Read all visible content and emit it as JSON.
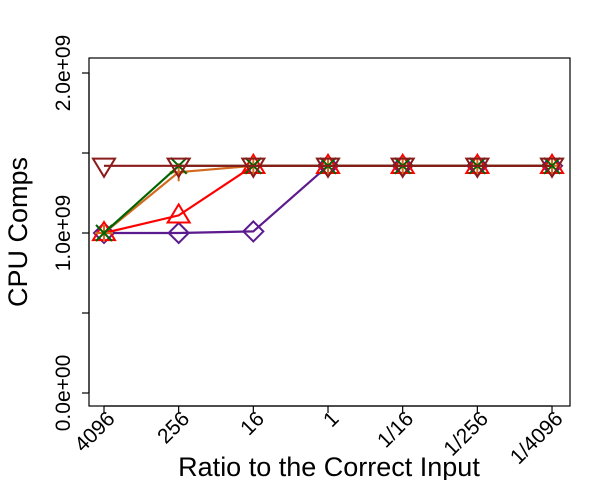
{
  "chart_data": {
    "type": "line",
    "title": "",
    "xlabel": "Ratio to the Correct Input",
    "ylabel": "CPU Comps",
    "categories": [
      "4096",
      "256",
      "16",
      "1",
      "1/16",
      "1/256",
      "1/4096"
    ],
    "ylim": [
      0,
      2000000000
    ],
    "yticks": [
      {
        "value": 0,
        "label": "0.0e+00"
      },
      {
        "value": 500000000,
        "label": ""
      },
      {
        "value": 1000000000,
        "label": "1.0e+09"
      },
      {
        "value": 1500000000,
        "label": ""
      },
      {
        "value": 2000000000,
        "label": "2.0e+09"
      }
    ],
    "grid": false,
    "legend": "none",
    "series": [
      {
        "color": "#5b1a8e",
        "marker": "diamond",
        "values": [
          1000000000,
          1000000000,
          1010000000,
          1420000000,
          1420000000,
          1420000000,
          1420000000
        ]
      },
      {
        "color": "#ff0000",
        "marker": "triangle-up",
        "values": [
          1000000000,
          1110000000,
          1420000000,
          1420000000,
          1420000000,
          1420000000,
          1420000000
        ]
      },
      {
        "color": "#d2691e",
        "marker": "cross",
        "values": [
          1000000000,
          1380000000,
          1420000000,
          1420000000,
          1420000000,
          1420000000,
          1420000000
        ]
      },
      {
        "color": "#006400",
        "marker": "x",
        "values": [
          1000000000,
          1420000000,
          1420000000,
          1420000000,
          1420000000,
          1420000000,
          1420000000
        ]
      },
      {
        "color": "#8b1a1a",
        "marker": "triangle-down",
        "values": [
          1420000000,
          1420000000,
          1420000000,
          1420000000,
          1420000000,
          1420000000,
          1420000000
        ]
      }
    ]
  }
}
